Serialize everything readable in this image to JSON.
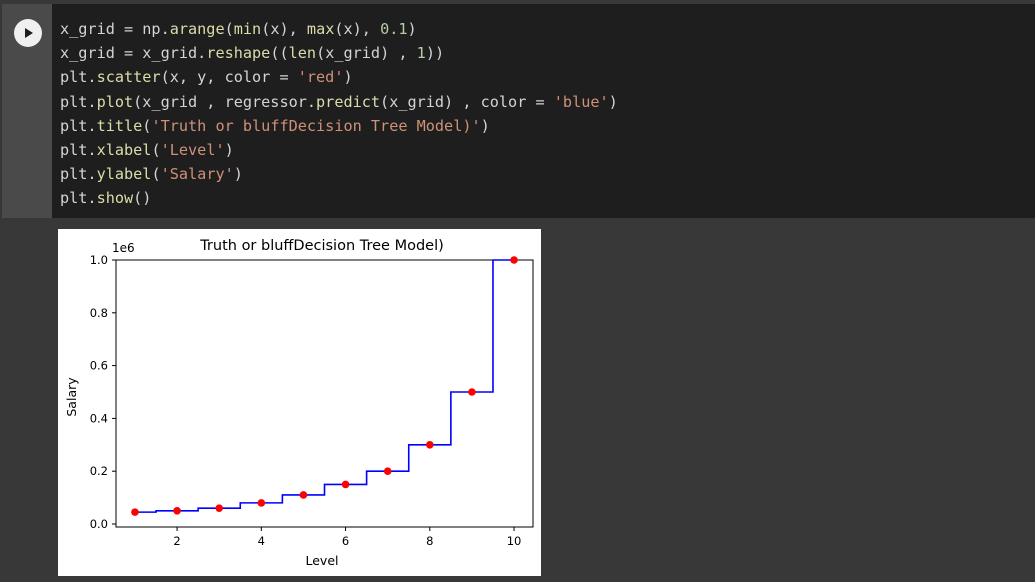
{
  "notebook": {
    "run_button": "run-cell",
    "code_lines": [
      [
        {
          "t": "x_grid = np."
        },
        {
          "t": "arange",
          "c": "f"
        },
        {
          "t": "("
        },
        {
          "t": "min",
          "c": "f"
        },
        {
          "t": "(x), "
        },
        {
          "t": "max",
          "c": "f"
        },
        {
          "t": "(x), "
        },
        {
          "t": "0.1",
          "c": "n"
        },
        {
          "t": ")"
        }
      ],
      [
        {
          "t": "x_grid = x_grid."
        },
        {
          "t": "reshape",
          "c": "f"
        },
        {
          "t": "(("
        },
        {
          "t": "len",
          "c": "f"
        },
        {
          "t": "(x_grid) , "
        },
        {
          "t": "1",
          "c": "n"
        },
        {
          "t": "))"
        }
      ],
      [
        {
          "t": "plt."
        },
        {
          "t": "scatter",
          "c": "f"
        },
        {
          "t": "(x, y, color = "
        },
        {
          "t": "'red'",
          "c": "s"
        },
        {
          "t": ")"
        }
      ],
      [
        {
          "t": "plt."
        },
        {
          "t": "plot",
          "c": "f"
        },
        {
          "t": "(x_grid , regressor."
        },
        {
          "t": "predict",
          "c": "f"
        },
        {
          "t": "(x_grid) , color = "
        },
        {
          "t": "'blue'",
          "c": "s"
        },
        {
          "t": ")"
        }
      ],
      [
        {
          "t": "plt."
        },
        {
          "t": "title",
          "c": "f"
        },
        {
          "t": "("
        },
        {
          "t": "'Truth or bluffDecision Tree Model)'",
          "c": "s"
        },
        {
          "t": ")"
        }
      ],
      [
        {
          "t": "plt."
        },
        {
          "t": "xlabel",
          "c": "f"
        },
        {
          "t": "("
        },
        {
          "t": "'Level'",
          "c": "s"
        },
        {
          "t": ")"
        }
      ],
      [
        {
          "t": "plt."
        },
        {
          "t": "ylabel",
          "c": "f"
        },
        {
          "t": "("
        },
        {
          "t": "'Salary'",
          "c": "s"
        },
        {
          "t": ")"
        }
      ],
      [
        {
          "t": "plt."
        },
        {
          "t": "show",
          "c": "f"
        },
        {
          "t": "()"
        }
      ]
    ]
  },
  "chart_data": {
    "type": "scatter",
    "title": "Truth or bluffDecision Tree Model)",
    "xlabel": "Level",
    "ylabel": "Salary",
    "y_scale_label": "1e6",
    "xlim": [
      0.55,
      10.45
    ],
    "ylim": [
      0,
      1.0
    ],
    "x_ticks": [
      2,
      4,
      6,
      8,
      10
    ],
    "y_ticks": [
      0.0,
      0.2,
      0.4,
      0.6,
      0.8,
      1.0
    ],
    "y_tick_labels": [
      "0.0",
      "0.2",
      "0.4",
      "0.6",
      "0.8",
      "1.0"
    ],
    "grid": false,
    "series": [
      {
        "kind": "scatter",
        "color": "#ff0000",
        "x": [
          1,
          2,
          3,
          4,
          5,
          6,
          7,
          8,
          9,
          10
        ],
        "y": [
          0.045,
          0.05,
          0.06,
          0.08,
          0.11,
          0.15,
          0.2,
          0.3,
          0.5,
          1.0
        ]
      },
      {
        "kind": "step",
        "color": "#0000ff",
        "x": [
          1,
          2,
          3,
          4,
          5,
          6,
          7,
          8,
          9,
          10
        ],
        "y": [
          0.045,
          0.05,
          0.06,
          0.08,
          0.11,
          0.15,
          0.2,
          0.3,
          0.5,
          1.0
        ]
      }
    ]
  }
}
